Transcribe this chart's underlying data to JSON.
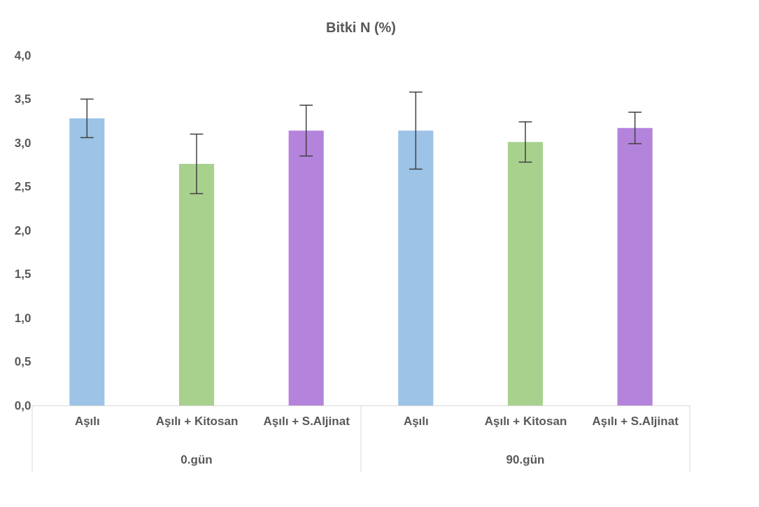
{
  "chart_data": {
    "type": "bar",
    "title": "Bitki N (%)",
    "categories": [
      "Aşılı",
      "Aşılı + Kitosan",
      "Aşılı + S.Aljinat",
      "Aşılı",
      "Aşılı + Kitosan",
      "Aşılı + S.Aljinat"
    ],
    "values": [
      3.28,
      2.76,
      3.14,
      3.14,
      3.01,
      3.17
    ],
    "errors": [
      0.22,
      0.34,
      0.29,
      0.44,
      0.23,
      0.18
    ],
    "colors": [
      "#9dc3e6",
      "#a9d18e",
      "#b484dc",
      "#9dc3e6",
      "#a9d18e",
      "#b484dc"
    ],
    "ylim": [
      0,
      4
    ],
    "yticks": [
      {
        "value": 0,
        "label": "0,0"
      },
      {
        "value": 0.5,
        "label": "0,5"
      },
      {
        "value": 1,
        "label": "1,0"
      },
      {
        "value": 1.5,
        "label": "1,5"
      },
      {
        "value": 2,
        "label": "2,0"
      },
      {
        "value": 2.5,
        "label": "2,5"
      },
      {
        "value": 3,
        "label": "3,0"
      },
      {
        "value": 3.5,
        "label": "3,5"
      },
      {
        "value": 4,
        "label": "4,0"
      }
    ],
    "annotations": [
      "0.gün",
      "90.gün"
    ],
    "grid": false
  }
}
